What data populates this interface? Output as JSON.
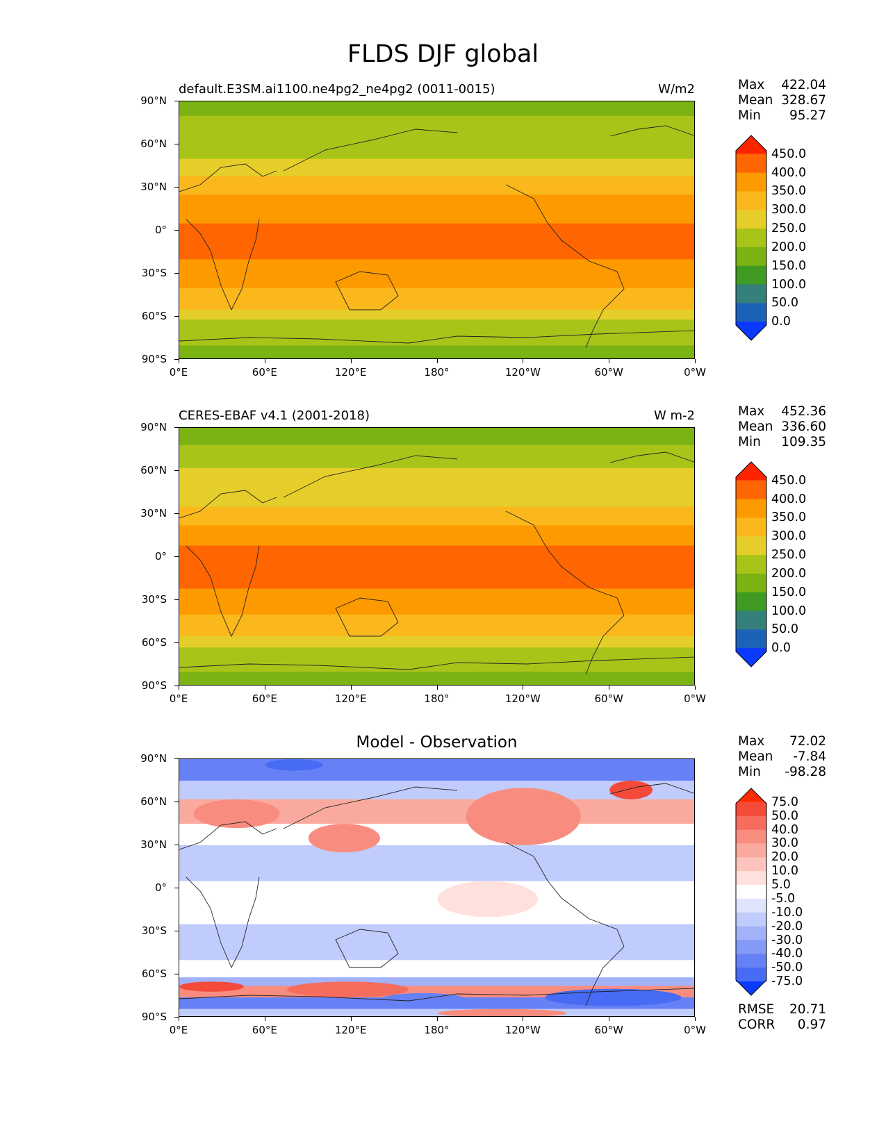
{
  "suptitle": "FLDS DJF global",
  "latitude_labels": [
    "90°N",
    "60°N",
    "30°N",
    "0°",
    "30°S",
    "60°S",
    "90°S"
  ],
  "longitude_labels": [
    "0°E",
    "60°E",
    "120°E",
    "180°",
    "120°W",
    "60°W",
    "0°W"
  ],
  "chart_data": [
    {
      "type": "heatmap",
      "title_left": "default.E3SM.ai1100.ne4pg2_ne4pg2 (0011-0015)",
      "title_right": "W/m2",
      "stats": [
        {
          "label": "Max",
          "value": "422.04"
        },
        {
          "label": "Mean",
          "value": "328.67"
        },
        {
          "label": "Min",
          "value": "95.27"
        }
      ],
      "colorbar": {
        "ticks": [
          "450.0",
          "400.0",
          "350.0",
          "300.0",
          "250.0",
          "200.0",
          "150.0",
          "100.0",
          "50.0",
          "0.0"
        ],
        "colors": [
          "#ff2400",
          "#ff6500",
          "#fd9a00",
          "#fbb81d",
          "#e6ce2a",
          "#a9c419",
          "#7ab312",
          "#3f9b21",
          "#35807b",
          "#1d62b9",
          "#0b3aff"
        ]
      },
      "x_range": [
        0,
        360
      ],
      "y_range": [
        -90,
        90
      ],
      "bands": [
        {
          "lat": [
            90,
            80
          ],
          "value": 165
        },
        {
          "lat": [
            80,
            65
          ],
          "value": 200
        },
        {
          "lat": [
            65,
            50
          ],
          "value": 240
        },
        {
          "lat": [
            50,
            38
          ],
          "value": 280
        },
        {
          "lat": [
            38,
            25
          ],
          "value": 330
        },
        {
          "lat": [
            25,
            5
          ],
          "value": 370
        },
        {
          "lat": [
            5,
            -20
          ],
          "value": 400
        },
        {
          "lat": [
            -20,
            -40
          ],
          "value": 360
        },
        {
          "lat": [
            -40,
            -55
          ],
          "value": 320
        },
        {
          "lat": [
            -55,
            -62
          ],
          "value": 280
        },
        {
          "lat": [
            -62,
            -70
          ],
          "value": 240
        },
        {
          "lat": [
            -70,
            -80
          ],
          "value": 200
        },
        {
          "lat": [
            -80,
            -90
          ],
          "value": 160
        }
      ]
    },
    {
      "type": "heatmap",
      "title_left": "CERES-EBAF v4.1 (2001-2018)",
      "title_right": "W m-2",
      "stats": [
        {
          "label": "Max",
          "value": "452.36"
        },
        {
          "label": "Mean",
          "value": "336.60"
        },
        {
          "label": "Min",
          "value": "109.35"
        }
      ],
      "colorbar": {
        "ticks": [
          "450.0",
          "400.0",
          "350.0",
          "300.0",
          "250.0",
          "200.0",
          "150.0",
          "100.0",
          "50.0",
          "0.0"
        ],
        "colors": [
          "#ff2400",
          "#ff6500",
          "#fd9a00",
          "#fbb81d",
          "#e6ce2a",
          "#a9c419",
          "#7ab312",
          "#3f9b21",
          "#35807b",
          "#1d62b9",
          "#0b3aff"
        ]
      },
      "x_range": [
        0,
        360
      ],
      "y_range": [
        -90,
        90
      ],
      "bands": [
        {
          "lat": [
            90,
            78
          ],
          "value": 190
        },
        {
          "lat": [
            78,
            62
          ],
          "value": 215
        },
        {
          "lat": [
            62,
            48
          ],
          "value": 250
        },
        {
          "lat": [
            48,
            35
          ],
          "value": 290
        },
        {
          "lat": [
            35,
            22
          ],
          "value": 340
        },
        {
          "lat": [
            22,
            8
          ],
          "value": 375
        },
        {
          "lat": [
            8,
            -22
          ],
          "value": 405
        },
        {
          "lat": [
            -22,
            -40
          ],
          "value": 365
        },
        {
          "lat": [
            -40,
            -55
          ],
          "value": 320
        },
        {
          "lat": [
            -55,
            -63
          ],
          "value": 280
        },
        {
          "lat": [
            -63,
            -72
          ],
          "value": 240
        },
        {
          "lat": [
            -72,
            -80
          ],
          "value": 210
        },
        {
          "lat": [
            -80,
            -90
          ],
          "value": 170
        }
      ]
    },
    {
      "type": "heatmap",
      "title_center": "Model - Observation",
      "stats": [
        {
          "label": "Max",
          "value": "72.02"
        },
        {
          "label": "Mean",
          "value": "-7.84"
        },
        {
          "label": "Min",
          "value": "-98.28"
        }
      ],
      "stats_extra": [
        {
          "label": "RMSE",
          "value": "20.71"
        },
        {
          "label": "CORR",
          "value": "0.97"
        }
      ],
      "colorbar": {
        "ticks": [
          "75.0",
          "50.0",
          "40.0",
          "30.0",
          "20.0",
          "10.0",
          "5.0",
          "-5.0",
          "-10.0",
          "-20.0",
          "-30.0",
          "-40.0",
          "-50.0",
          "-75.0"
        ],
        "colors": [
          "#ff2a00",
          "#f44a3a",
          "#f66d5e",
          "#f88d7f",
          "#faa99e",
          "#fcc4bd",
          "#fee0dc",
          "#ffffff",
          "#dfe5fd",
          "#c0ccfb",
          "#a2b2f9",
          "#849af7",
          "#6680f5",
          "#476bf4",
          "#0b3aff"
        ]
      },
      "x_range": [
        0,
        360
      ],
      "y_range": [
        -90,
        90
      ],
      "bands": [
        {
          "lat": [
            90,
            75
          ],
          "value": -45
        },
        {
          "lat": [
            75,
            62
          ],
          "value": -15
        },
        {
          "lat": [
            62,
            45
          ],
          "value": 22
        },
        {
          "lat": [
            45,
            30
          ],
          "value": 0
        },
        {
          "lat": [
            30,
            5
          ],
          "value": -15
        },
        {
          "lat": [
            5,
            -25
          ],
          "value": 0
        },
        {
          "lat": [
            -25,
            -50
          ],
          "value": -15
        },
        {
          "lat": [
            -50,
            -62
          ],
          "value": 0
        },
        {
          "lat": [
            -62,
            -68
          ],
          "value": -30
        },
        {
          "lat": [
            -68,
            -76
          ],
          "value": 35
        },
        {
          "lat": [
            -76,
            -84
          ],
          "value": -45
        },
        {
          "lat": [
            -84,
            -90
          ],
          "value": -12
        }
      ],
      "anomalies": [
        {
          "lon": [
            10,
            70
          ],
          "lat": [
            62,
            42
          ],
          "value": 35
        },
        {
          "lon": [
            90,
            140
          ],
          "lat": [
            45,
            25
          ],
          "value": 30
        },
        {
          "lon": [
            200,
            280
          ],
          "lat": [
            70,
            30
          ],
          "value": 35
        },
        {
          "lon": [
            300,
            330
          ],
          "lat": [
            75,
            62
          ],
          "value": 55
        },
        {
          "lon": [
            0,
            45
          ],
          "lat": [
            -65,
            -72
          ],
          "value": 50
        },
        {
          "lon": [
            75,
            160
          ],
          "lat": [
            -65,
            -76
          ],
          "value": 45
        },
        {
          "lon": [
            180,
            270
          ],
          "lat": [
            -84,
            -90
          ],
          "value": 35
        },
        {
          "lon": [
            255,
            350
          ],
          "lat": [
            -70,
            -82
          ],
          "value": -65
        },
        {
          "lon": [
            140,
            200
          ],
          "lat": [
            -73,
            -82
          ],
          "value": -50
        },
        {
          "lon": [
            60,
            100
          ],
          "lat": [
            90,
            82
          ],
          "value": -60
        },
        {
          "lon": [
            180,
            250
          ],
          "lat": [
            5,
            -20
          ],
          "value": 8
        }
      ]
    }
  ]
}
